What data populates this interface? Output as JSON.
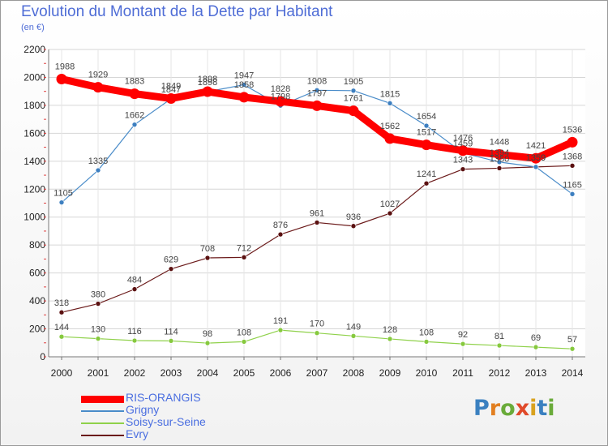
{
  "title": "Evolution du Montant de la Dette par Habitant",
  "subtitle": "(en €)",
  "logo": {
    "letters": [
      "P",
      "r",
      "o",
      "x",
      "i",
      "t",
      "i"
    ],
    "colors": [
      "#3a80c0",
      "#e27f20",
      "#6aab3a",
      "#e04a2a",
      "#d9a21f",
      "#3a80c0",
      "#6aab3a"
    ]
  },
  "chart_data": {
    "type": "line",
    "x": [
      2000,
      2001,
      2002,
      2003,
      2004,
      2005,
      2006,
      2007,
      2008,
      2009,
      2010,
      2011,
      2012,
      2013,
      2014
    ],
    "ylim": [
      0,
      2200
    ],
    "yticks": [
      0,
      200,
      400,
      600,
      800,
      1000,
      1200,
      1400,
      1600,
      1800,
      2000,
      2200
    ],
    "grid": true,
    "legend_position": "bottom-left",
    "series": [
      {
        "name": "RIS-ORANGIS",
        "color": "#ff0000",
        "values": [
          1988,
          1929,
          1883,
          1849,
          1898,
          1858,
          1828,
          1797,
          1761,
          1562,
          1517,
          1476,
          1448,
          1421,
          1536
        ]
      },
      {
        "name": "Grigny",
        "color": "#4a8cc9",
        "values": [
          1105,
          1335,
          1662,
          1847,
          1898,
          1947,
          1798,
          1908,
          1905,
          1815,
          1654,
          1459,
          1394,
          1359,
          1165
        ]
      },
      {
        "name": "Soisy-sur-Seine",
        "color": "#8fd14a",
        "values": [
          144,
          130,
          116,
          114,
          98,
          108,
          191,
          170,
          149,
          128,
          108,
          92,
          81,
          69,
          57
        ]
      },
      {
        "name": "Evry",
        "color": "#6b1a1a",
        "values": [
          318,
          380,
          484,
          629,
          708,
          712,
          876,
          961,
          936,
          1027,
          1241,
          1343,
          1350,
          1359,
          1368
        ]
      }
    ]
  }
}
